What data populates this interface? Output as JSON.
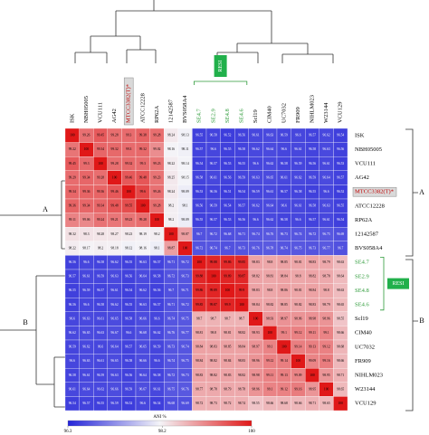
{
  "chart_data": {
    "type": "heatmap",
    "categories": [
      "ISK",
      "NBH05005",
      "VCU111",
      "AG42",
      "MTCC3382(T)*",
      "ATCC12228",
      "RP62A",
      "12142587",
      "BVS058A4",
      "SE4.7",
      "SE2.9",
      "SE4.8",
      "SE4.6",
      "Scl19",
      "CIM40",
      "UC7032",
      "FR909",
      "NIHLM023",
      "W23144",
      "VCU129"
    ],
    "label_colors": [
      "#000000",
      "#000000",
      "#000000",
      "#000000",
      "#c00000",
      "#000000",
      "#000000",
      "#000000",
      "#000000",
      "#2e9b3a",
      "#2e9b3a",
      "#2e9b3a",
      "#2e9b3a",
      "#000000",
      "#000000",
      "#000000",
      "#000000",
      "#000000",
      "#000000",
      "#000000"
    ],
    "values": [
      [
        100,
        99.26,
        99.45,
        99.28,
        99.3,
        99.38,
        99.28,
        98.24,
        98.13,
        96.55,
        96.58,
        96.52,
        96.56,
        96.61,
        96.63,
        96.59,
        96.6,
        96.57,
        96.62,
        96.54
      ],
      [
        99.22,
        100,
        99.34,
        99.32,
        99.3,
        99.32,
        99.02,
        98.16,
        98.11,
        96.57,
        96.6,
        96.55,
        96.58,
        96.62,
        96.64,
        96.6,
        96.61,
        96.58,
        96.63,
        96.56
      ],
      [
        99.45,
        99.3,
        100,
        99.28,
        99.32,
        99.3,
        99.23,
        98.22,
        98.14,
        96.54,
        96.57,
        96.53,
        96.55,
        96.6,
        96.62,
        96.58,
        96.59,
        96.56,
        96.61,
        96.53
      ],
      [
        99.29,
        99.34,
        99.28,
        100,
        99.46,
        99.48,
        99.23,
        98.25,
        98.15,
        96.58,
        96.61,
        96.56,
        96.59,
        96.63,
        96.65,
        96.61,
        96.62,
        96.59,
        96.64,
        96.57
      ],
      [
        99.34,
        99.36,
        99.36,
        99.46,
        100,
        99.6,
        99.26,
        98.24,
        98.09,
        96.53,
        96.56,
        96.51,
        96.54,
        96.59,
        96.61,
        96.57,
        96.58,
        96.55,
        96.6,
        96.52
      ],
      [
        99.36,
        99.34,
        99.34,
        99.48,
        99.55,
        100,
        99.28,
        98.2,
        98.1,
        96.56,
        96.59,
        96.54,
        96.57,
        96.62,
        96.64,
        96.6,
        96.61,
        96.58,
        96.63,
        96.55
      ],
      [
        99.11,
        99.06,
        99.24,
        99.21,
        99.23,
        99.28,
        100,
        98.2,
        98.09,
        96.55,
        96.57,
        96.53,
        96.56,
        96.6,
        96.62,
        96.58,
        96.6,
        96.57,
        96.61,
        96.54
      ],
      [
        98.32,
        98.3,
        98.28,
        98.27,
        98.23,
        98.19,
        98.2,
        100,
        98.87,
        96.7,
        96.72,
        96.68,
        96.71,
        96.74,
        96.76,
        96.73,
        96.74,
        96.72,
        96.75,
        96.69
      ],
      [
        98.22,
        98.17,
        98.2,
        98.18,
        98.12,
        98.16,
        98.1,
        98.87,
        100,
        96.72,
        96.74,
        96.7,
        96.73,
        96.76,
        96.78,
        96.74,
        96.75,
        96.73,
        96.77,
        96.7
      ],
      [
        96.56,
        96.6,
        96.58,
        96.62,
        96.55,
        96.63,
        96.57,
        96.71,
        96.72,
        100,
        99.88,
        99.86,
        99.85,
        98.83,
        98.8,
        98.85,
        98.81,
        98.83,
        98.79,
        98.63
      ],
      [
        96.57,
        96.61,
        96.59,
        96.63,
        96.56,
        96.64,
        96.58,
        96.72,
        96.73,
        99.88,
        100,
        99.89,
        99.87,
        98.82,
        98.81,
        98.84,
        98.8,
        98.82,
        98.78,
        98.64
      ],
      [
        96.55,
        96.59,
        96.57,
        96.61,
        96.54,
        96.62,
        96.56,
        96.7,
        96.71,
        99.86,
        99.89,
        100,
        99.9,
        98.83,
        98.8,
        98.86,
        98.81,
        98.84,
        98.8,
        98.63
      ],
      [
        96.56,
        96.6,
        96.58,
        96.62,
        96.55,
        96.63,
        96.57,
        96.71,
        96.72,
        99.85,
        99.87,
        99.9,
        100,
        98.84,
        98.82,
        98.85,
        98.82,
        98.83,
        98.79,
        98.65
      ],
      [
        96.6,
        96.63,
        96.61,
        96.65,
        96.58,
        96.66,
        96.6,
        96.74,
        96.75,
        98.7,
        98.7,
        98.7,
        98.7,
        100,
        98.93,
        98.97,
        98.96,
        98.98,
        98.96,
        98.55
      ],
      [
        96.62,
        96.65,
        96.63,
        96.67,
        96.6,
        96.68,
        96.62,
        96.76,
        96.77,
        98.81,
        98.8,
        98.81,
        98.82,
        98.93,
        100,
        99.1,
        99.12,
        99.11,
        99.1,
        98.66
      ],
      [
        96.59,
        96.62,
        96.6,
        96.64,
        96.57,
        96.65,
        96.59,
        96.73,
        96.74,
        98.84,
        98.83,
        98.85,
        98.84,
        98.97,
        99.1,
        100,
        99.14,
        99.13,
        99.12,
        98.68
      ],
      [
        96.6,
        96.63,
        96.61,
        96.65,
        96.58,
        96.66,
        96.6,
        96.74,
        96.75,
        98.84,
        98.82,
        98.84,
        98.83,
        98.96,
        99.12,
        99.14,
        100,
        99.09,
        99.16,
        98.66
      ],
      [
        96.58,
        96.61,
        96.59,
        96.63,
        96.56,
        96.64,
        96.58,
        96.72,
        96.73,
        98.83,
        98.82,
        98.83,
        98.82,
        98.98,
        99.11,
        99.13,
        99.09,
        100,
        98.95,
        98.71
      ],
      [
        96.61,
        96.64,
        96.62,
        96.66,
        96.59,
        96.67,
        96.61,
        96.75,
        96.76,
        98.77,
        98.78,
        98.79,
        98.78,
        98.96,
        99.1,
        99.12,
        99.16,
        98.95,
        100,
        98.65
      ],
      [
        96.54,
        96.57,
        96.55,
        96.59,
        96.52,
        96.6,
        96.54,
        96.68,
        96.69,
        98.72,
        98.73,
        98.72,
        98.74,
        98.55,
        98.66,
        98.68,
        98.66,
        98.71,
        98.65,
        100
      ]
    ],
    "colorbar": {
      "label": "ANI %",
      "lim": [
        96.3,
        100
      ],
      "ticks": [
        96.3,
        98.2,
        100
      ],
      "colors": [
        "#2424d8",
        "#f4f4f8",
        "#e01818"
      ]
    },
    "groups": [
      "A",
      "B"
    ],
    "badge": "RESI"
  }
}
